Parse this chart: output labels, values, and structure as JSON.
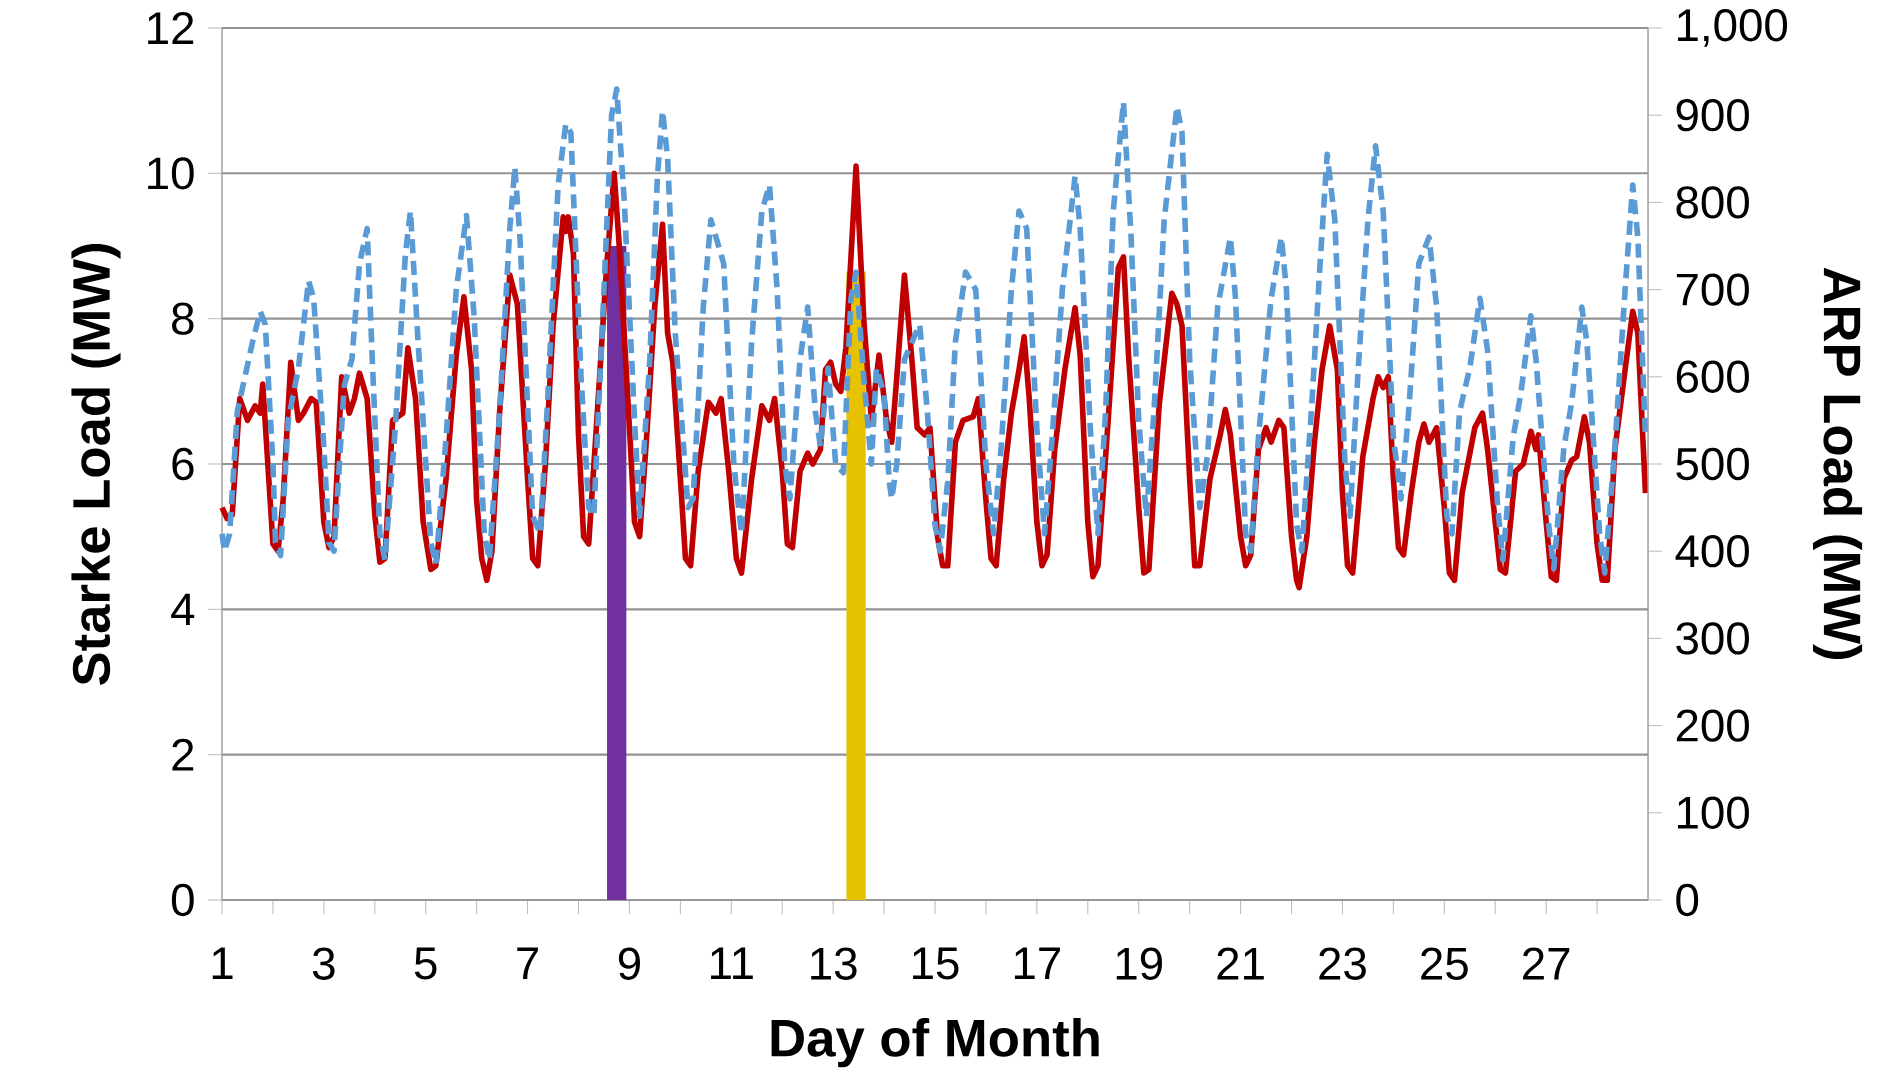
{
  "chart_data": {
    "type": "line",
    "xlabel": "Day of Month",
    "ylabel": "Starke Load (MW)",
    "y2label": "ARP Load (MW)",
    "xlim": [
      1,
      29
    ],
    "xticks": [
      1,
      {
        "value": 2,
        "label": null
      },
      3,
      {
        "value": 4,
        "label": null
      },
      5,
      {
        "value": 6,
        "label": null
      },
      7,
      {
        "value": 8,
        "label": null
      },
      9,
      {
        "value": 10,
        "label": null
      },
      11,
      {
        "value": 12,
        "label": null
      },
      13,
      {
        "value": 14,
        "label": null
      },
      15,
      {
        "value": 16,
        "label": null
      },
      17,
      {
        "value": 18,
        "label": null
      },
      19,
      {
        "value": 20,
        "label": null
      },
      21,
      {
        "value": 22,
        "label": null
      },
      23,
      {
        "value": 24,
        "label": null
      },
      25,
      {
        "value": 26,
        "label": null
      },
      27,
      {
        "value": 28,
        "label": null
      }
    ],
    "ylim": [
      0,
      12
    ],
    "yticks": [
      0,
      2,
      4,
      6,
      8,
      10,
      12
    ],
    "y2lim": [
      0,
      1000
    ],
    "y2ticks": [
      0,
      100,
      200,
      300,
      400,
      500,
      600,
      700,
      800,
      900,
      {
        "value": 1000,
        "label": "1,000"
      }
    ],
    "grid": "y",
    "series": [
      {
        "color": "#c00000",
        "line_style": "solid",
        "x": [
          1.0,
          1.1,
          1.2,
          1.35,
          1.5,
          1.65,
          1.75,
          1.8,
          1.9,
          2.0,
          2.1,
          2.2,
          2.35,
          2.5,
          2.6,
          2.75,
          2.85,
          3.0,
          3.1,
          3.2,
          3.35,
          3.5,
          3.6,
          3.7,
          3.85,
          4.0,
          4.1,
          4.2,
          4.35,
          4.55,
          4.65,
          4.8,
          4.95,
          5.1,
          5.2,
          5.4,
          5.6,
          5.75,
          5.9,
          6.0,
          6.1,
          6.2,
          6.3,
          6.45,
          6.65,
          6.8,
          7.0,
          7.1,
          7.2,
          7.35,
          7.5,
          7.7,
          7.75,
          7.8,
          7.9,
          8.0,
          8.1,
          8.2,
          8.35,
          8.55,
          8.7,
          8.8,
          9.0,
          9.1,
          9.2,
          9.35,
          9.5,
          9.65,
          9.75,
          9.85,
          10.0,
          10.1,
          10.2,
          10.35,
          10.55,
          10.7,
          10.8,
          10.95,
          11.1,
          11.2,
          11.4,
          11.6,
          11.75,
          11.85,
          12.0,
          12.1,
          12.2,
          12.35,
          12.5,
          12.6,
          12.75,
          12.85,
          12.95,
          13.05,
          13.15,
          13.25,
          13.45,
          13.6,
          13.75,
          13.9,
          14.05,
          14.15,
          14.25,
          14.4,
          14.55,
          14.65,
          14.8,
          14.9,
          15.05,
          15.15,
          15.25,
          15.4,
          15.55,
          15.75,
          15.85,
          16.0,
          16.1,
          16.2,
          16.35,
          16.5,
          16.65,
          16.75,
          16.85,
          17.0,
          17.1,
          17.2,
          17.35,
          17.55,
          17.75,
          17.85,
          18.0,
          18.1,
          18.2,
          18.4,
          18.6,
          18.7,
          18.8,
          19.0,
          19.1,
          19.2,
          19.4,
          19.65,
          19.75,
          19.85,
          20.0,
          20.1,
          20.2,
          20.4,
          20.6,
          20.7,
          20.8,
          21.0,
          21.1,
          21.2,
          21.35,
          21.5,
          21.6,
          21.75,
          21.85,
          22.0,
          22.1,
          22.15,
          22.3,
          22.45,
          22.6,
          22.75,
          22.9,
          23.0,
          23.1,
          23.2,
          23.4,
          23.6,
          23.7,
          23.8,
          23.9,
          24.0,
          24.1,
          24.2,
          24.35,
          24.5,
          24.6,
          24.7,
          24.85,
          25.0,
          25.1,
          25.2,
          25.35,
          25.6,
          25.75,
          25.85,
          26.0,
          26.1,
          26.2,
          26.4,
          26.55,
          26.7,
          26.8,
          26.85,
          27.0,
          27.1,
          27.2,
          27.35,
          27.5,
          27.6,
          27.75,
          27.85,
          28.0,
          28.1,
          28.2,
          28.35,
          28.55,
          28.7,
          28.8,
          28.95
        ],
        "values": [
          5.4,
          5.25,
          5.3,
          6.9,
          6.6,
          6.8,
          6.7,
          7.1,
          6.0,
          4.9,
          4.8,
          5.5,
          7.4,
          6.6,
          6.7,
          6.9,
          6.85,
          5.2,
          4.85,
          5.0,
          7.2,
          6.7,
          6.9,
          7.25,
          6.9,
          5.3,
          4.65,
          4.7,
          6.6,
          6.7,
          7.6,
          6.9,
          5.2,
          4.55,
          4.6,
          5.8,
          7.5,
          8.3,
          7.3,
          5.5,
          4.7,
          4.4,
          4.8,
          6.7,
          8.6,
          8.2,
          5.8,
          4.7,
          4.6,
          6.0,
          7.9,
          9.4,
          9.2,
          9.4,
          8.9,
          6.4,
          5.0,
          4.9,
          6.5,
          8.7,
          10.0,
          9.0,
          6.5,
          5.2,
          5.0,
          6.5,
          8.2,
          9.3,
          7.8,
          7.4,
          5.8,
          4.7,
          4.6,
          5.9,
          6.85,
          6.7,
          6.9,
          5.9,
          4.7,
          4.5,
          5.8,
          6.8,
          6.6,
          6.9,
          5.9,
          4.9,
          4.85,
          5.9,
          6.15,
          6.0,
          6.2,
          7.3,
          7.4,
          7.1,
          7.0,
          7.6,
          10.1,
          8.0,
          6.6,
          7.5,
          6.6,
          6.3,
          7.2,
          8.6,
          7.4,
          6.5,
          6.4,
          6.5,
          5.0,
          4.6,
          4.6,
          6.3,
          6.6,
          6.65,
          6.9,
          5.5,
          4.7,
          4.6,
          5.8,
          6.7,
          7.3,
          7.75,
          6.9,
          5.2,
          4.6,
          4.75,
          6.2,
          7.3,
          8.15,
          7.5,
          5.2,
          4.45,
          4.6,
          6.6,
          8.7,
          8.85,
          7.5,
          5.4,
          4.5,
          4.55,
          6.8,
          8.35,
          8.2,
          7.9,
          5.8,
          4.6,
          4.6,
          5.8,
          6.4,
          6.75,
          6.4,
          5.0,
          4.6,
          4.75,
          6.2,
          6.5,
          6.3,
          6.6,
          6.5,
          5.0,
          4.4,
          4.3,
          5.0,
          6.3,
          7.3,
          7.9,
          7.3,
          5.6,
          4.6,
          4.5,
          6.1,
          6.9,
          7.2,
          7.05,
          7.2,
          5.8,
          4.85,
          4.75,
          5.6,
          6.3,
          6.55,
          6.3,
          6.5,
          5.4,
          4.5,
          4.4,
          5.6,
          6.5,
          6.7,
          6.2,
          5.2,
          4.55,
          4.5,
          5.9,
          6.0,
          6.45,
          6.2,
          6.4,
          5.2,
          4.45,
          4.4,
          5.8,
          6.05,
          6.1,
          6.65,
          6.3,
          4.9,
          4.4,
          4.4,
          6.2,
          7.3,
          8.1,
          7.8,
          5.6
        ]
      },
      {
        "color": "#5b9bd5",
        "line_style": "dashed",
        "axis": "y2",
        "x": [
          1.0,
          1.05,
          1.15,
          1.3,
          1.45,
          1.6,
          1.75,
          1.85,
          2.0,
          2.05,
          2.15,
          2.3,
          2.5,
          2.7,
          2.8,
          3.0,
          3.1,
          3.2,
          3.4,
          3.55,
          3.7,
          3.85,
          3.95,
          4.1,
          4.2,
          4.4,
          4.6,
          4.7,
          4.85,
          5.1,
          5.2,
          5.4,
          5.6,
          5.8,
          5.95,
          6.15,
          6.25,
          6.45,
          6.65,
          6.75,
          6.85,
          7.1,
          7.25,
          7.4,
          7.6,
          7.75,
          7.85,
          8.05,
          8.2,
          8.3,
          8.5,
          8.65,
          8.75,
          8.9,
          9.1,
          9.2,
          9.4,
          9.55,
          9.65,
          9.75,
          9.9,
          10.15,
          10.25,
          10.45,
          10.6,
          10.75,
          10.85,
          11.05,
          11.2,
          11.4,
          11.6,
          11.75,
          11.9,
          12.05,
          12.15,
          12.35,
          12.5,
          12.65,
          12.75,
          12.9,
          13.05,
          13.2,
          13.35,
          13.45,
          13.6,
          13.75,
          13.85,
          14.0,
          14.1,
          14.15,
          14.25,
          14.4,
          14.55,
          14.7,
          14.85,
          15.0,
          15.1,
          15.25,
          15.4,
          15.6,
          15.8,
          16.0,
          16.15,
          16.3,
          16.5,
          16.65,
          16.8,
          17.0,
          17.15,
          17.3,
          17.5,
          17.75,
          17.85,
          18.05,
          18.2,
          18.35,
          18.5,
          18.7,
          18.85,
          19.0,
          19.15,
          19.3,
          19.5,
          19.75,
          19.85,
          20.0,
          20.2,
          20.35,
          20.55,
          20.8,
          20.9,
          21.1,
          21.2,
          21.35,
          21.6,
          21.8,
          21.9,
          22.1,
          22.2,
          22.4,
          22.55,
          22.7,
          22.85,
          23.05,
          23.15,
          23.3,
          23.5,
          23.65,
          23.8,
          24.0,
          24.15,
          24.3,
          24.5,
          24.7,
          24.85,
          25.05,
          25.15,
          25.3,
          25.5,
          25.7,
          25.85,
          26.05,
          26.15,
          26.35,
          26.5,
          26.7,
          26.8,
          27.05,
          27.15,
          27.35,
          27.5,
          27.7,
          27.8,
          28.05,
          28.15,
          28.35,
          28.55,
          28.7,
          28.8,
          28.95
        ],
        "values": [
          420,
          400,
          420,
          560,
          600,
          640,
          675,
          660,
          500,
          410,
          395,
          550,
          610,
          710,
          690,
          520,
          410,
          400,
          590,
          620,
          730,
          770,
          620,
          420,
          390,
          540,
          740,
          790,
          640,
          410,
          385,
          530,
          700,
          785,
          670,
          420,
          390,
          560,
          770,
          840,
          760,
          440,
          420,
          580,
          820,
          890,
          880,
          600,
          450,
          440,
          700,
          900,
          930,
          800,
          550,
          440,
          620,
          830,
          905,
          850,
          650,
          450,
          460,
          680,
          780,
          750,
          730,
          500,
          420,
          640,
          790,
          820,
          700,
          500,
          460,
          620,
          680,
          560,
          520,
          610,
          500,
          490,
          690,
          720,
          600,
          500,
          610,
          580,
          480,
          460,
          500,
          620,
          640,
          660,
          560,
          430,
          400,
          480,
          640,
          720,
          700,
          500,
          420,
          520,
          700,
          790,
          770,
          540,
          420,
          530,
          700,
          830,
          770,
          540,
          420,
          560,
          790,
          915,
          760,
          550,
          440,
          560,
          780,
          910,
          880,
          620,
          450,
          510,
          680,
          760,
          690,
          420,
          400,
          530,
          690,
          760,
          700,
          430,
          400,
          570,
          720,
          855,
          780,
          500,
          440,
          600,
          780,
          865,
          790,
          530,
          460,
          560,
          730,
          760,
          680,
          440,
          420,
          560,
          610,
          690,
          630,
          450,
          390,
          530,
          580,
          670,
          620,
          430,
          380,
          520,
          570,
          680,
          640,
          420,
          375,
          520,
          700,
          820,
          760,
          530
        ]
      },
      {
        "type": "bar",
        "color": "#7030a0",
        "x": [
          8.75
        ],
        "values": [
          9.0
        ]
      },
      {
        "type": "bar",
        "color": "#e6c200",
        "x": [
          13.45
        ],
        "values": [
          8.65
        ]
      }
    ]
  }
}
